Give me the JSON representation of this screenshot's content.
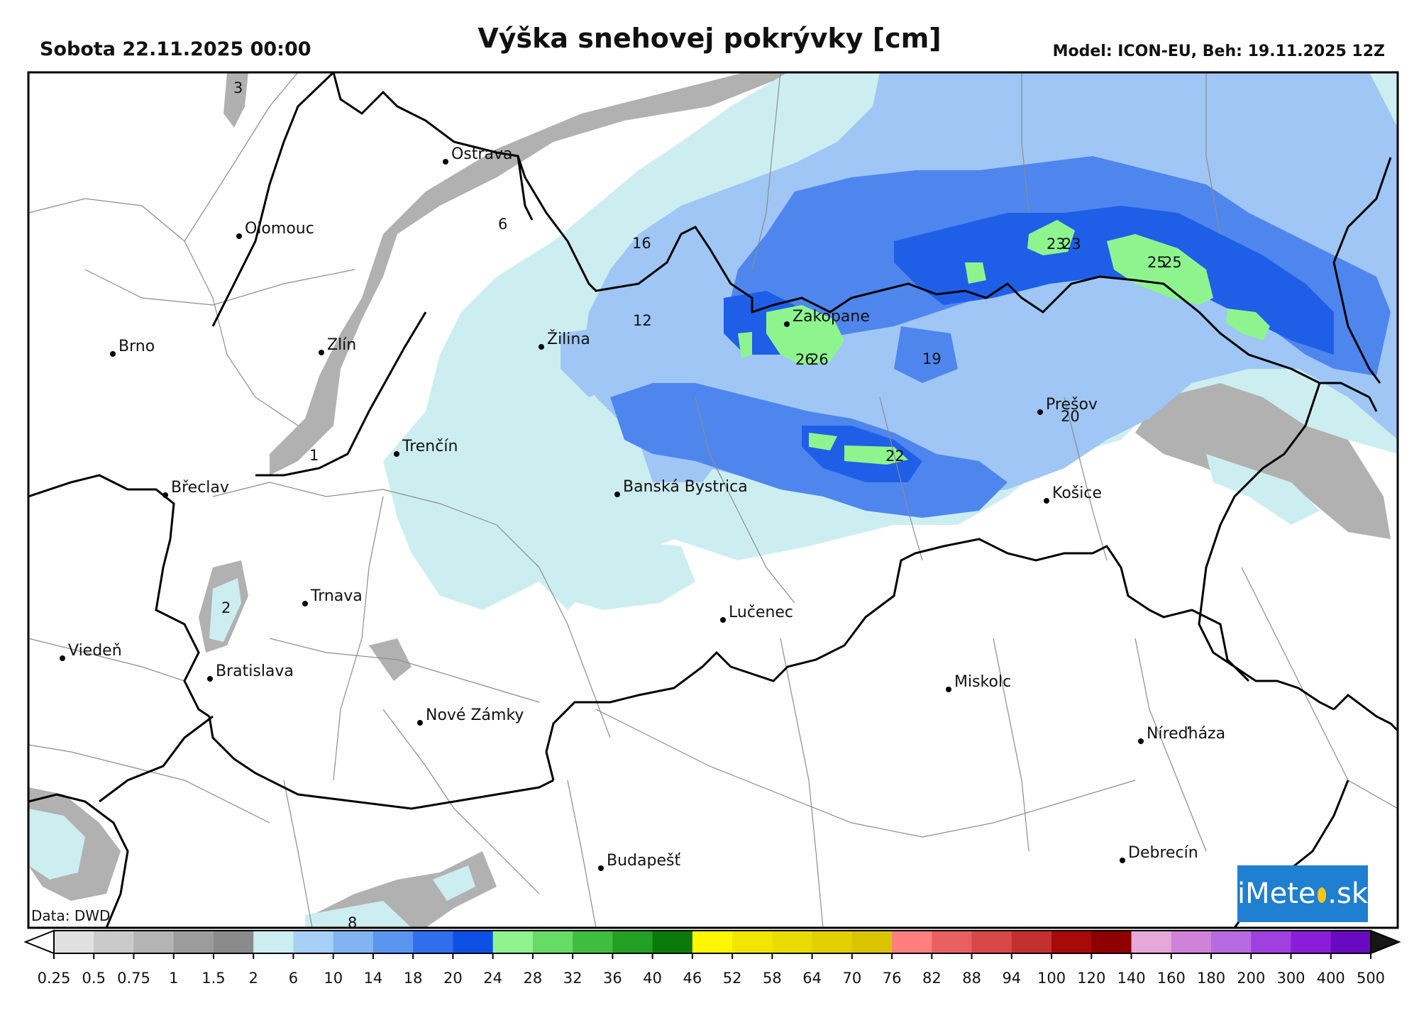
{
  "header": {
    "date_label": "Sobota 22.11.2025 00:00",
    "title": "Výška snehovej pokrývky [cm]",
    "model_label": "Model: ICON-EU, Beh: 19.11.2025 12Z"
  },
  "credit": "Data: DWD",
  "brand": {
    "prefix": "iMete",
    "suffix": ".sk"
  },
  "cities": [
    {
      "name": "Ostrava"
    },
    {
      "name": "Olomouc"
    },
    {
      "name": "Brno"
    },
    {
      "name": "Zlín"
    },
    {
      "name": "Žilina"
    },
    {
      "name": "Zakopane"
    },
    {
      "name": "Trenčín"
    },
    {
      "name": "Břeclav"
    },
    {
      "name": "Banská Bystrica"
    },
    {
      "name": "Prešov"
    },
    {
      "name": "Košice"
    },
    {
      "name": "Trnava"
    },
    {
      "name": "Lučenec"
    },
    {
      "name": "Viedeň"
    },
    {
      "name": "Bratislava"
    },
    {
      "name": "Miskolc"
    },
    {
      "name": "Nové Zámky"
    },
    {
      "name": "Níreďháza"
    },
    {
      "name": "Budapešť"
    },
    {
      "name": "Debrecín"
    }
  ],
  "value_labels": [
    "3",
    "6",
    "16",
    "12",
    "23",
    "23",
    "25",
    "25",
    "26",
    "26",
    "19",
    "20",
    "22",
    "1",
    "2",
    "8"
  ],
  "colorbar": {
    "ticks": [
      "0.25",
      "0.5",
      "0.75",
      "1",
      "1.5",
      "2",
      "6",
      "10",
      "14",
      "18",
      "20",
      "24",
      "28",
      "32",
      "36",
      "40",
      "46",
      "52",
      "58",
      "64",
      "70",
      "76",
      "82",
      "88",
      "94",
      "100",
      "120",
      "140",
      "160",
      "180",
      "200",
      "300",
      "400",
      "500"
    ],
    "colors": [
      "#ffffff",
      "#e0e0e0",
      "#cacaca",
      "#b4b4b4",
      "#9c9c9c",
      "#8a8a8a",
      "#cdeef0",
      "#a8cff5",
      "#82b4f3",
      "#5a96f0",
      "#2f6fec",
      "#0e50e6",
      "#8ef58e",
      "#66dc66",
      "#3ebd3e",
      "#23a023",
      "#0a7a0a",
      "#fff700",
      "#f2e600",
      "#eadc00",
      "#e2d000",
      "#dac400",
      "#ff7f7f",
      "#e86060",
      "#d84848",
      "#c43030",
      "#a80a0a",
      "#8e0000",
      "#e6a8d8",
      "#cf82d8",
      "#b86ae0",
      "#a040e0",
      "#8a1ed8",
      "#6a0ac0",
      "#5a2850",
      "#4a2040",
      "#2a1a24",
      "#161616"
    ]
  },
  "colors": {
    "border": "#000000",
    "frame": "#000000",
    "snow_light": "#cdeef0",
    "snow_mid": "#82b4f3",
    "snow_deep": "#2f6fec",
    "snow_max": "#8ef58e",
    "brand": "#1f7fd0"
  }
}
